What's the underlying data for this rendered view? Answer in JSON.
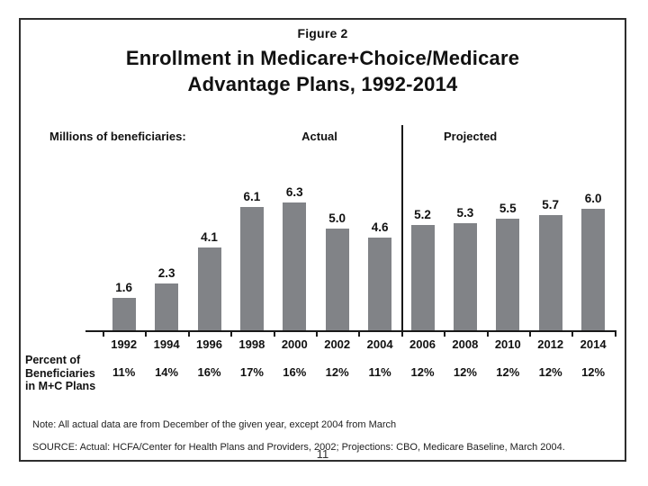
{
  "figure": {
    "label": "Figure 2",
    "title_line1": "Enrollment in Medicare+Choice/Medicare",
    "title_line2": "Advantage Plans, 1992-2014"
  },
  "chart_data": {
    "type": "bar",
    "title": "Enrollment in Medicare+Choice/Medicare Advantage Plans, 1992-2014",
    "unit_label": "Millions of beneficiaries:",
    "section_labels": {
      "actual": "Actual",
      "projected": "Projected"
    },
    "categories": [
      "1992",
      "1994",
      "1996",
      "1998",
      "2000",
      "2002",
      "2004",
      "2006",
      "2008",
      "2010",
      "2012",
      "2014"
    ],
    "values": [
      1.6,
      2.3,
      4.1,
      6.1,
      6.3,
      5.0,
      4.6,
      5.2,
      5.3,
      5.5,
      5.7,
      6.0
    ],
    "value_labels": [
      "1.6",
      "2.3",
      "4.1",
      "6.1",
      "6.3",
      "5.0",
      "4.6",
      "5.2",
      "5.3",
      "5.5",
      "5.7",
      "6.0"
    ],
    "actual_count": 7,
    "percent_row": {
      "label_lines": [
        "Percent of",
        "Beneficiaries",
        "in M+C Plans"
      ],
      "values": [
        "11%",
        "14%",
        "16%",
        "17%",
        "16%",
        "12%",
        "11%",
        "12%",
        "12%",
        "12%",
        "12%",
        "12%"
      ]
    },
    "ylim": [
      0,
      7
    ],
    "grid": false,
    "legend_position": "none",
    "bar_color": "#818387",
    "axis_color": "#1a1a1a"
  },
  "footer": {
    "note": "Note: All actual data are from December of the given year, except 2004 from March",
    "source": "SOURCE: Actual: HCFA/Center for Health Plans and Providers, 2002; Projections: CBO, Medicare Baseline, March 2004.",
    "page_number": "11"
  }
}
